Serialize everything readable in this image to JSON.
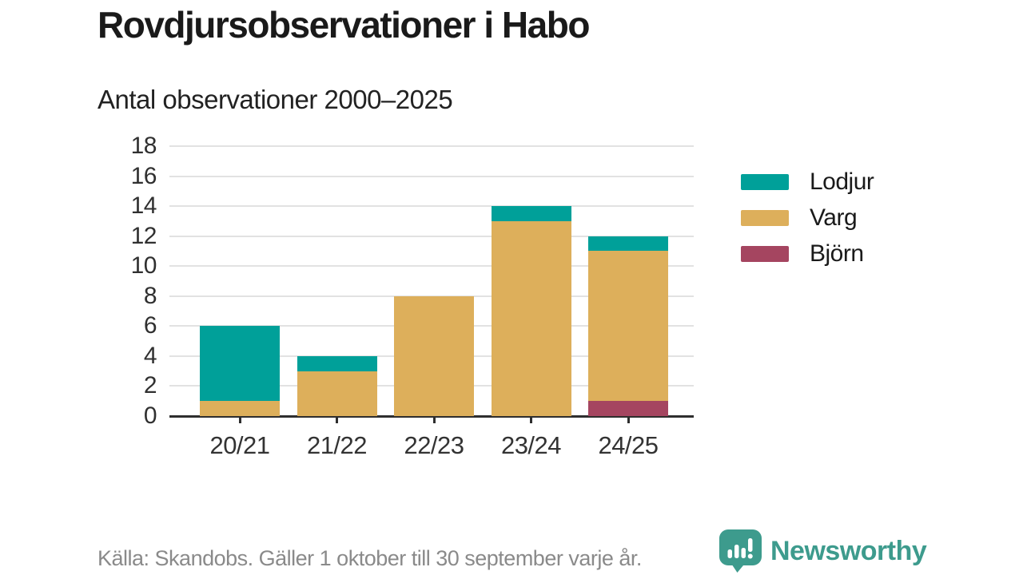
{
  "header": {
    "title": "Rovdjursobservationer i Habo",
    "subtitle": "Antal observationer 2000–2025"
  },
  "chart_data": {
    "type": "bar",
    "stacked": true,
    "title": "Rovdjursobservationer i Habo",
    "subtitle": "Antal observationer 2000–2025",
    "categories": [
      "20/21",
      "21/22",
      "22/23",
      "23/24",
      "24/25"
    ],
    "series": [
      {
        "name": "Björn",
        "color": "#a54560",
        "values": [
          0,
          0,
          0,
          0,
          1
        ]
      },
      {
        "name": "Varg",
        "color": "#ddaf5b",
        "values": [
          1,
          3,
          8,
          13,
          10
        ]
      },
      {
        "name": "Lodjur",
        "color": "#00a099",
        "values": [
          5,
          1,
          0,
          1,
          1
        ]
      }
    ],
    "totals": [
      6,
      4,
      8,
      14,
      12
    ],
    "legend": [
      "Lodjur",
      "Varg",
      "Björn"
    ],
    "legend_position": "right",
    "ylim": [
      0,
      18
    ],
    "ytick_step": 2,
    "yticks": [
      0,
      2,
      4,
      6,
      8,
      10,
      12,
      14,
      16,
      18
    ],
    "grid": "horizontal"
  },
  "footer": {
    "source": "Källa: Skandobs. Gäller 1 oktober till 30 september varje år."
  },
  "branding": {
    "logo_text": "Newsworthy",
    "logo_color": "#3d9b8d"
  },
  "colors": {
    "lodjur": "#00a099",
    "varg": "#ddaf5b",
    "bjorn": "#a54560",
    "gridline": "#e2e2e2",
    "axis": "#2e2e2e",
    "footer_text": "#8a8a8a"
  }
}
